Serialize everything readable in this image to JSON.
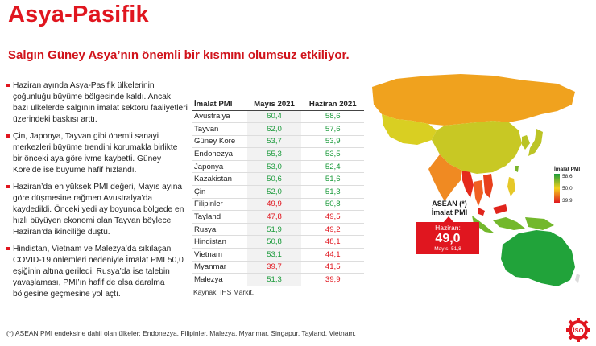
{
  "title": "Asya-Pasifik",
  "subtitle": "Salgın Güney Asya’nın önemli bir kısmını olumsuz etkiliyor.",
  "bullets": [
    "Haziran ayında Asya-Pasifik ülkelerinin çoğunluğu büyüme bölgesinde kaldı. Ancak bazı ülkelerde salgının imalat sektörü faaliyetleri üzerindeki baskısı arttı.",
    "Çin, Japonya, Tayvan gibi önemli sanayi merkezleri büyüme trendini korumakla birlikte bir önceki aya göre ivme kaybetti. Güney Kore’de ise büyüme hafif hızlandı.",
    "Haziran’da en yüksek PMI değeri, Mayıs ayına göre düşmesine rağmen Avustralya’da kaydedildi. Önceki yedi ay boyunca bölgede en hızlı büyüyen ekonomi olan Tayvan böylece Haziran’da ikinciliğe düştü.",
    "Hindistan, Vietnam ve Malezya’da sıkılaşan COVID-19 önlemleri nedeniyle İmalat PMI 50,0 eşiğinin altına geriledi. Rusya’da ise talebin yavaşlaması, PMI’ın hafif de olsa daralma bölgesine geçmesine yol açtı."
  ],
  "table": {
    "headers": [
      "İmalat PMI",
      "Mayıs 2021",
      "Haziran 2021"
    ],
    "rows": [
      {
        "country": "Avustralya",
        "may": "60,4",
        "jun": "58,6"
      },
      {
        "country": "Tayvan",
        "may": "62,0",
        "jun": "57,6"
      },
      {
        "country": "Güney Kore",
        "may": "53,7",
        "jun": "53,9"
      },
      {
        "country": "Endonezya",
        "may": "55,3",
        "jun": "53,5"
      },
      {
        "country": "Japonya",
        "may": "53,0",
        "jun": "52,4"
      },
      {
        "country": "Kazakistan",
        "may": "50,6",
        "jun": "51,6"
      },
      {
        "country": "Çin",
        "may": "52,0",
        "jun": "51,3"
      },
      {
        "country": "Filipinler",
        "may": "49,9",
        "jun": "50,8"
      },
      {
        "country": "Tayland",
        "may": "47,8",
        "jun": "49,5"
      },
      {
        "country": "Rusya",
        "may": "51,9",
        "jun": "49,2"
      },
      {
        "country": "Hindistan",
        "may": "50,8",
        "jun": "48,1"
      },
      {
        "country": "Vietnam",
        "may": "53,1",
        "jun": "44,1"
      },
      {
        "country": "Myanmar",
        "may": "39,7",
        "jun": "41,5"
      },
      {
        "country": "Malezya",
        "may": "51,3",
        "jun": "39,9"
      }
    ]
  },
  "source": "Kaynak: IHS Markit.",
  "asean": {
    "label_line1": "ASEAN (*)",
    "label_line2": "İmalat PMI",
    "box_label": "Haziran:",
    "box_value": "49,0",
    "box_prev": "Mayıs: 51,8"
  },
  "legend": {
    "title": "İmalat PMI",
    "max": "58,6",
    "mid": "50,0",
    "min": "39,9"
  },
  "footnote": "(*) ASEAN PMI endeksine dahil olan ülkeler: Endonezya, Filipinler, Malezya, Myanmar, Singapur, Tayland, Vietnam.",
  "logo_text": "İSO",
  "colors": {
    "accent": "#e0161f",
    "growth": "#1a9a3a",
    "contraction": "#e0161f"
  }
}
